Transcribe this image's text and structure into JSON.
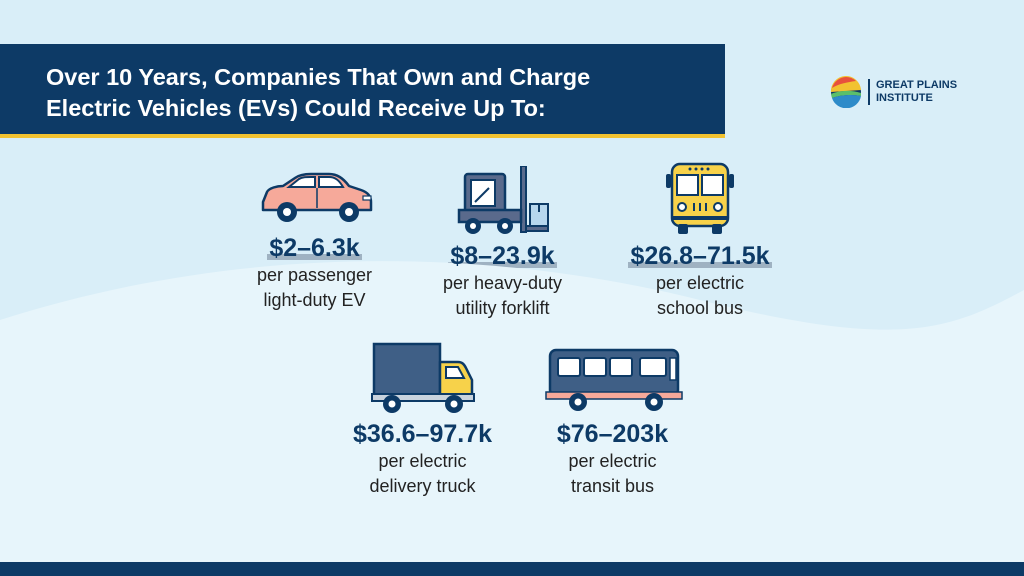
{
  "title": {
    "line1": "Over 10 Years, Companies That Own and Charge",
    "line2": "Electric Vehicles (EVs) Could Receive Up To:"
  },
  "logo": {
    "line1": "GREAT PLAINS",
    "line2": "INSTITUTE"
  },
  "items": [
    {
      "amount": "$2–6.3k",
      "line1": "per passenger",
      "line2": "light-duty EV",
      "icon": "car-icon"
    },
    {
      "amount": "$8–23.9k",
      "line1": "per heavy-duty",
      "line2": "utility forklift",
      "icon": "forklift-icon"
    },
    {
      "amount": "$26.8–71.5k",
      "line1": "per electric",
      "line2": "school bus",
      "icon": "school-bus-icon"
    },
    {
      "amount": "$36.6–97.7k",
      "line1": "per electric",
      "line2": "delivery truck",
      "icon": "delivery-truck-icon"
    },
    {
      "amount": "$76–203k",
      "line1": "per electric",
      "line2": "transit bus",
      "icon": "transit-bus-icon"
    }
  ],
  "colors": {
    "navy": "#0d3a66",
    "gold": "#f2c230",
    "background": "#d9eef8",
    "car": "#f6a99a",
    "forklift": "#5a6a8c",
    "school_bus": "#f7d24a",
    "truck": "#3f5f86",
    "transit_bus": "#3f5f86"
  }
}
